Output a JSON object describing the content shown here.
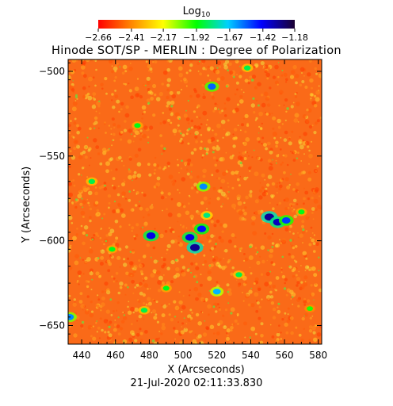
{
  "chart_data": {
    "type": "heatmap",
    "title": "Hinode SOT/SP - MERLIN : Degree of Polarization",
    "xlabel": "X (Arcseconds)",
    "ylabel": "Y (Arcseconds)",
    "footer": "21-Jul-2020 02:11:33.830",
    "colorbar": {
      "label_main": "Log",
      "label_sub": "10",
      "ticks": [
        -2.66,
        -2.41,
        -2.17,
        -1.92,
        -1.67,
        -1.42,
        -1.18
      ],
      "tick_labels": [
        "−2.66",
        "−2.41",
        "−2.17",
        "−1.92",
        "−1.67",
        "−1.42",
        "−1.18"
      ],
      "range": [
        -2.66,
        -1.18
      ]
    },
    "x_ticks": [
      440,
      460,
      480,
      500,
      520,
      540,
      560,
      580
    ],
    "x_tick_labels": [
      "440",
      "460",
      "480",
      "500",
      "520",
      "540",
      "560",
      "580"
    ],
    "y_ticks": [
      -500,
      -550,
      -600,
      -650
    ],
    "y_tick_labels": [
      "−500",
      "−550",
      "−600",
      "−650"
    ],
    "xlim": [
      432,
      582
    ],
    "ylim": [
      -661,
      -493
    ],
    "background_level": -2.5,
    "features": [
      {
        "x": 517,
        "y": -509,
        "value": -1.55
      },
      {
        "x": 538,
        "y": -498,
        "value": -1.85
      },
      {
        "x": 473,
        "y": -532,
        "value": -1.9
      },
      {
        "x": 514,
        "y": -585,
        "value": -1.8
      },
      {
        "x": 507,
        "y": -604,
        "value": -1.3
      },
      {
        "x": 504,
        "y": -598,
        "value": -1.4
      },
      {
        "x": 511,
        "y": -593,
        "value": -1.45
      },
      {
        "x": 481,
        "y": -597,
        "value": -1.4
      },
      {
        "x": 551,
        "y": -586,
        "value": -1.3
      },
      {
        "x": 556,
        "y": -589,
        "value": -1.35
      },
      {
        "x": 561,
        "y": -588,
        "value": -1.5
      },
      {
        "x": 570,
        "y": -583,
        "value": -1.9
      },
      {
        "x": 512,
        "y": -568,
        "value": -1.6
      },
      {
        "x": 446,
        "y": -565,
        "value": -1.85
      },
      {
        "x": 490,
        "y": -628,
        "value": -1.9
      },
      {
        "x": 533,
        "y": -620,
        "value": -1.85
      },
      {
        "x": 477,
        "y": -641,
        "value": -1.85
      },
      {
        "x": 520,
        "y": -630,
        "value": -1.65
      },
      {
        "x": 433,
        "y": -645,
        "value": -1.6
      },
      {
        "x": 575,
        "y": -640,
        "value": -1.95
      },
      {
        "x": 458,
        "y": -605,
        "value": -1.9
      }
    ]
  }
}
